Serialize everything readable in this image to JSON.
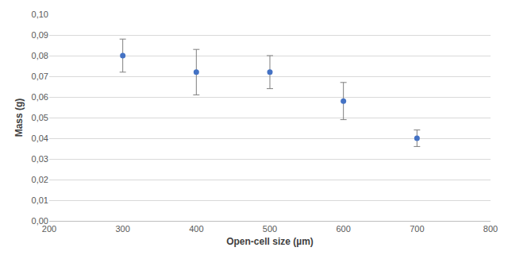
{
  "chart_data": {
    "type": "scatter",
    "x_label": "Open-cell size (µm)",
    "y_label": "Mass (g)",
    "x": [
      300,
      400,
      500,
      600,
      700
    ],
    "values": [
      0.08,
      0.072,
      0.072,
      0.058,
      0.04
    ],
    "error": [
      0.008,
      0.011,
      0.008,
      0.009,
      0.004
    ],
    "color": "#4472c4",
    "marker": "circle",
    "xlim": [
      200,
      800
    ],
    "xticks": [
      200,
      300,
      400,
      500,
      600,
      700,
      800
    ],
    "ylim": [
      0,
      0.1
    ],
    "yticks": [
      {
        "value": 0.0,
        "label": "0,00"
      },
      {
        "value": 0.01,
        "label": "0,01"
      },
      {
        "value": 0.02,
        "label": "0,02"
      },
      {
        "value": 0.03,
        "label": "0,03"
      },
      {
        "value": 0.04,
        "label": "0,04"
      },
      {
        "value": 0.05,
        "label": "0,05"
      },
      {
        "value": 0.06,
        "label": "0,06"
      },
      {
        "value": 0.07,
        "label": "0,07"
      },
      {
        "value": 0.08,
        "label": "0,08"
      },
      {
        "value": 0.09,
        "label": "0,09"
      },
      {
        "value": 0.1,
        "label": "0,10"
      }
    ],
    "grid": true
  }
}
